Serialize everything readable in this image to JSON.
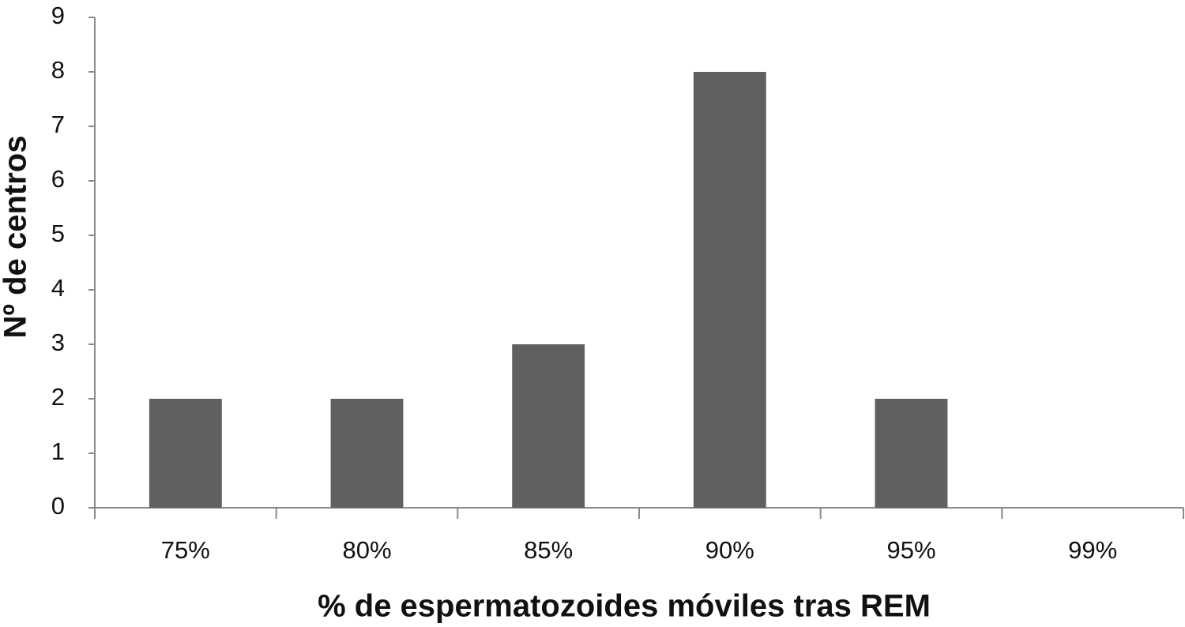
{
  "chart_data": {
    "type": "bar",
    "x_label": "% de espermatozoides móviles tras REM",
    "y_label": "Nº de centros",
    "categories": [
      "75%",
      "80%",
      "85%",
      "90%",
      "95%",
      "99%"
    ],
    "values": [
      2,
      2,
      3,
      8,
      2,
      0
    ],
    "color": "#606060",
    "ylim": [
      0,
      9
    ],
    "yticks": [
      0,
      1,
      2,
      3,
      4,
      5,
      6,
      7,
      8,
      9
    ],
    "grid": false
  }
}
